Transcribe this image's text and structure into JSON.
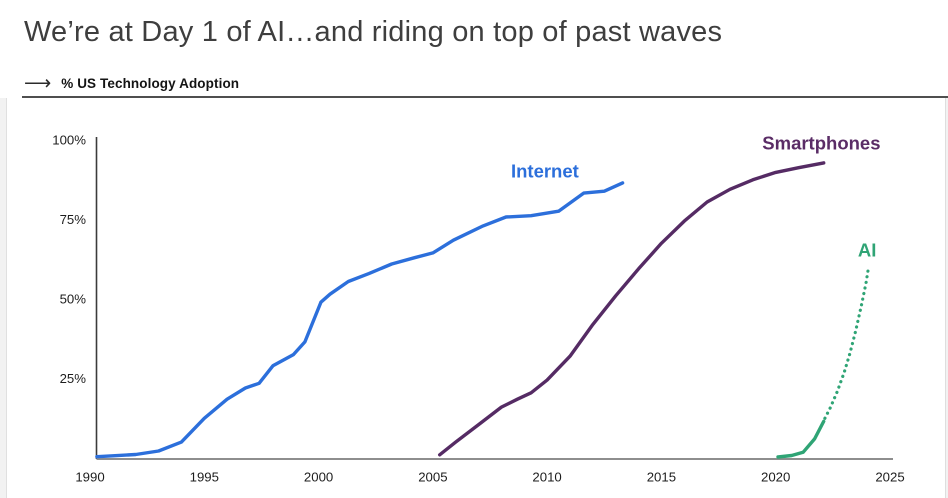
{
  "header": {
    "title": "We’re at Day 1 of AI…and riding on top of past waves",
    "kicker": "% US Technology Adoption",
    "arrow_icon": "⟶"
  },
  "chart_data": {
    "type": "line",
    "title": "% US Technology Adoption",
    "grid": false,
    "legend_position": "inline-labels",
    "x_axis": {
      "range": [
        1990,
        2025
      ],
      "ticks": [
        1990,
        1995,
        2000,
        2005,
        2010,
        2015,
        2020,
        2025
      ]
    },
    "y_axis": {
      "unit": "%",
      "range": [
        0,
        100
      ],
      "ticks": [
        {
          "value": 100,
          "label": "100%"
        },
        {
          "value": 75,
          "label": "75%"
        },
        {
          "value": 50,
          "label": "50%"
        },
        {
          "value": 25,
          "label": "25%"
        }
      ]
    },
    "series": [
      {
        "id": "internet",
        "name": "Internet",
        "color": "#2c6fdb",
        "style": "solid",
        "points": [
          [
            1990.3,
            0.4
          ],
          [
            1991,
            0.7
          ],
          [
            1992,
            1.1
          ],
          [
            1993,
            2.2
          ],
          [
            1994,
            5
          ],
          [
            1995,
            12.5
          ],
          [
            1996,
            18.5
          ],
          [
            1996.8,
            22
          ],
          [
            1997.4,
            23.5
          ],
          [
            1998,
            29
          ],
          [
            1998.9,
            32.5
          ],
          [
            1999.4,
            36.5
          ],
          [
            2000.1,
            49
          ],
          [
            2000.5,
            51.5
          ],
          [
            2001.3,
            55.5
          ],
          [
            2002.2,
            58
          ],
          [
            2003.2,
            61
          ],
          [
            2004.2,
            63
          ],
          [
            2005,
            64.5
          ],
          [
            2005.9,
            68.5
          ],
          [
            2007.2,
            73
          ],
          [
            2008.2,
            75.8
          ],
          [
            2009.3,
            76.2
          ],
          [
            2010.5,
            77.6
          ],
          [
            2011.6,
            83.3
          ],
          [
            2012.5,
            83.9
          ],
          [
            2013.3,
            86.5
          ]
        ]
      },
      {
        "id": "smartphones",
        "name": "Smartphones",
        "color": "#552b64",
        "style": "solid",
        "points": [
          [
            2005.3,
            1
          ],
          [
            2006,
            5
          ],
          [
            2007,
            10.5
          ],
          [
            2008,
            16
          ],
          [
            2008.7,
            18.5
          ],
          [
            2009.3,
            20.5
          ],
          [
            2010,
            24.5
          ],
          [
            2011,
            32
          ],
          [
            2012,
            42
          ],
          [
            2013,
            51
          ],
          [
            2014,
            59.5
          ],
          [
            2015,
            67.5
          ],
          [
            2016,
            74.5
          ],
          [
            2017,
            80.5
          ],
          [
            2018,
            84.5
          ],
          [
            2019,
            87.5
          ],
          [
            2020,
            89.8
          ],
          [
            2021,
            91.3
          ],
          [
            2022.1,
            92.8
          ]
        ]
      },
      {
        "id": "ai",
        "name": "AI",
        "color": "#2fa475",
        "style": "solid",
        "points": [
          [
            2020.1,
            0.3
          ],
          [
            2020.7,
            0.8
          ],
          [
            2021.2,
            1.8
          ],
          [
            2021.7,
            6
          ],
          [
            2022.1,
            11.5
          ]
        ]
      },
      {
        "id": "ai-projected",
        "name": "AI (projected)",
        "color": "#2fa475",
        "style": "dotted",
        "points": [
          [
            2022.15,
            12.5
          ],
          [
            2022.4,
            16
          ],
          [
            2022.7,
            21
          ],
          [
            2023,
            27
          ],
          [
            2023.25,
            33
          ],
          [
            2023.5,
            40
          ],
          [
            2023.75,
            48
          ],
          [
            2023.95,
            55
          ],
          [
            2024.05,
            59.5
          ]
        ]
      }
    ],
    "labels": [
      {
        "id": "internet",
        "text": "Internet",
        "color": "#2c6fdb",
        "x_year": 2009.9,
        "y_pct": 90.3
      },
      {
        "id": "smartphones",
        "text": "Smartphones",
        "color": "#5a2c66",
        "x_year": 2022.0,
        "y_pct": 99.0
      },
      {
        "id": "ai",
        "text": "AI",
        "color": "#2fa475",
        "x_year": 2024.0,
        "y_pct": 65.4
      }
    ]
  }
}
